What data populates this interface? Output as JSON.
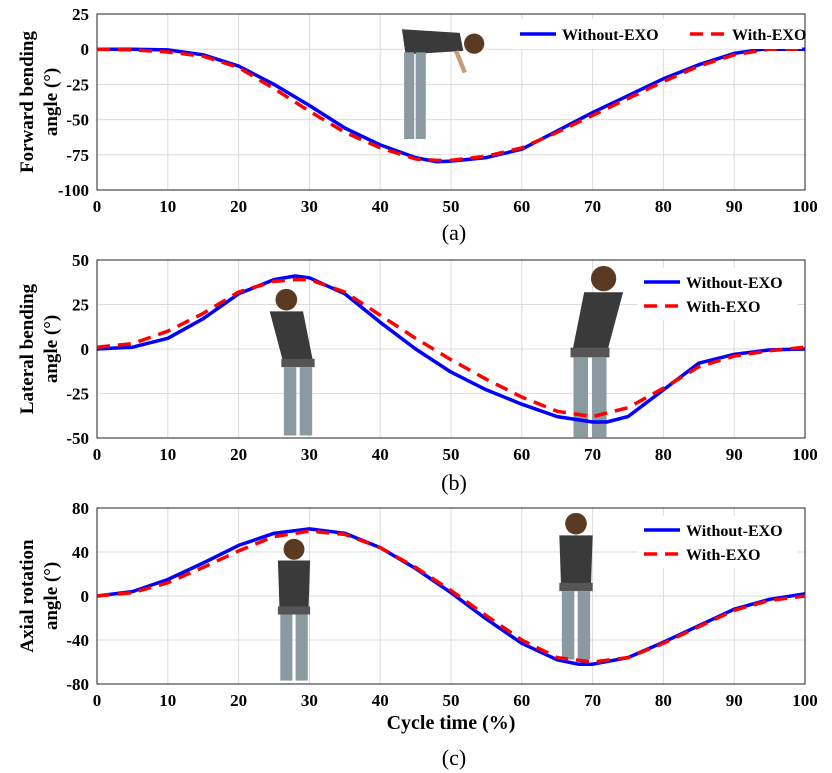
{
  "chart_data": [
    {
      "type": "line",
      "panel_label": "(a)",
      "xlabel": "",
      "ylabel_lines": [
        "Forward bending",
        "angle (°)"
      ],
      "xlim": [
        0,
        100
      ],
      "ylim": [
        -100,
        25
      ],
      "xticks": [
        0,
        10,
        20,
        30,
        40,
        50,
        60,
        70,
        80,
        90,
        100
      ],
      "yticks": [
        25,
        0,
        -25,
        -50,
        -75,
        -100
      ],
      "grid": true,
      "legend_position": "top-right",
      "legend_layout": "horizontal",
      "series": [
        {
          "name": "Without-EXO",
          "color": "#0000ff",
          "style": "solid",
          "x": [
            0,
            5,
            10,
            15,
            20,
            25,
            30,
            35,
            40,
            45,
            48,
            50,
            55,
            60,
            65,
            70,
            75,
            80,
            85,
            90,
            94,
            95,
            100
          ],
          "y": [
            0,
            0,
            -0.5,
            -4,
            -12,
            -25,
            -40,
            -56,
            -68,
            -77,
            -80,
            -79.5,
            -77,
            -71,
            -58,
            -45,
            -33,
            -21,
            -11,
            -3,
            0,
            0,
            0
          ]
        },
        {
          "name": "With-EXO",
          "color": "#ff0000",
          "style": "dashed",
          "x": [
            0,
            5,
            10,
            15,
            20,
            25,
            30,
            35,
            40,
            45,
            48,
            50,
            55,
            60,
            65,
            70,
            75,
            80,
            85,
            90,
            95,
            100
          ],
          "y": [
            0,
            -0.5,
            -2,
            -5,
            -13,
            -28,
            -44,
            -59,
            -70,
            -78,
            -79,
            -79,
            -76,
            -70,
            -59,
            -47,
            -35,
            -23,
            -12,
            -4,
            0,
            0
          ]
        }
      ]
    },
    {
      "type": "line",
      "panel_label": "(b)",
      "xlabel": "",
      "ylabel_lines": [
        "Lateral bending",
        "angle (°)"
      ],
      "xlim": [
        0,
        100
      ],
      "ylim": [
        -50,
        50
      ],
      "xticks": [
        0,
        10,
        20,
        30,
        40,
        50,
        60,
        70,
        80,
        90,
        100
      ],
      "yticks": [
        50,
        25,
        0,
        -25,
        -50
      ],
      "grid": true,
      "legend_position": "top-right",
      "legend_layout": "vertical",
      "series": [
        {
          "name": "Without-EXO",
          "color": "#0000ff",
          "style": "solid",
          "x": [
            0,
            5,
            10,
            15,
            20,
            25,
            28,
            30,
            35,
            40,
            45,
            50,
            55,
            60,
            65,
            70,
            72,
            75,
            80,
            85,
            90,
            95,
            100
          ],
          "y": [
            0,
            1,
            6,
            17,
            31,
            39,
            41,
            40,
            31,
            15,
            0,
            -13,
            -23,
            -31,
            -38,
            -41,
            -41,
            -38,
            -23,
            -8,
            -3,
            -0.5,
            0
          ]
        },
        {
          "name": "With-EXO",
          "color": "#ff0000",
          "style": "dashed",
          "x": [
            0,
            5,
            10,
            15,
            20,
            25,
            28,
            30,
            35,
            40,
            45,
            50,
            55,
            60,
            65,
            70,
            75,
            80,
            85,
            90,
            95,
            100
          ],
          "y": [
            1,
            3,
            10,
            20,
            32,
            38,
            39,
            39,
            32,
            19,
            6,
            -6,
            -17,
            -27,
            -35,
            -38,
            -33,
            -22,
            -10,
            -4,
            -1,
            1
          ]
        }
      ]
    },
    {
      "type": "line",
      "panel_label": "(c)",
      "xlabel": "Cycle time (%)",
      "ylabel_lines": [
        "Axial rotation",
        "angle (°)"
      ],
      "xlim": [
        0,
        100
      ],
      "ylim": [
        -80,
        80
      ],
      "xticks": [
        0,
        10,
        20,
        30,
        40,
        50,
        60,
        70,
        80,
        90,
        100
      ],
      "yticks": [
        80,
        40,
        0,
        -40,
        -80
      ],
      "grid": true,
      "legend_position": "top-right",
      "legend_layout": "vertical",
      "series": [
        {
          "name": "Without-EXO",
          "color": "#0000ff",
          "style": "solid",
          "x": [
            0,
            5,
            10,
            15,
            20,
            25,
            30,
            35,
            40,
            45,
            50,
            55,
            60,
            65,
            68,
            70,
            75,
            80,
            85,
            90,
            95,
            100
          ],
          "y": [
            0,
            4,
            15,
            30,
            46,
            57,
            61,
            57,
            44,
            25,
            3,
            -21,
            -43,
            -58,
            -62,
            -62,
            -56,
            -42,
            -27,
            -12,
            -3,
            2
          ]
        },
        {
          "name": "With-EXO",
          "color": "#ff0000",
          "style": "dashed",
          "x": [
            0,
            5,
            10,
            15,
            20,
            25,
            30,
            35,
            40,
            45,
            50,
            55,
            60,
            65,
            70,
            75,
            80,
            85,
            90,
            95,
            100
          ],
          "y": [
            0,
            3,
            12,
            26,
            41,
            54,
            59,
            56,
            44,
            26,
            5,
            -18,
            -40,
            -56,
            -60,
            -56,
            -43,
            -28,
            -13,
            -4,
            0
          ]
        }
      ]
    }
  ]
}
